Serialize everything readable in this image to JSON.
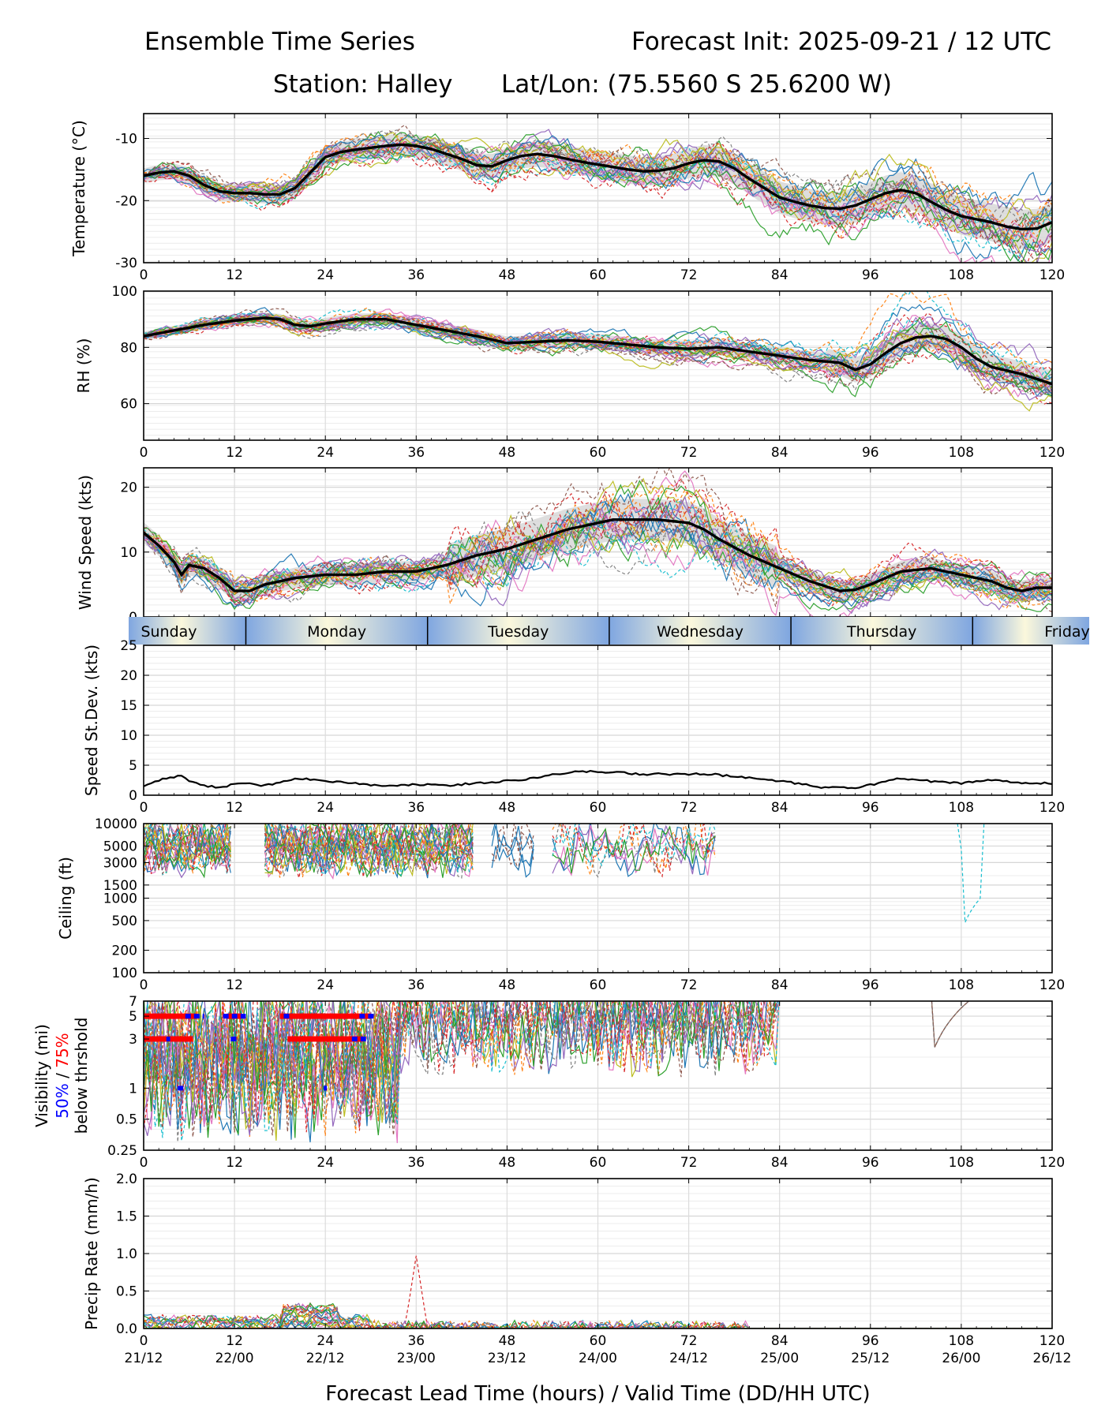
{
  "header": {
    "left_title": "Ensemble Time Series",
    "right_title": "Forecast Init: 2025-09-21 / 12 UTC",
    "station": "Station: Halley",
    "latlon": "Lat/Lon: (75.5560 S 25.6200 W)"
  },
  "colors": {
    "members": [
      "#1f77b4",
      "#ff7f0e",
      "#2ca02c",
      "#d62728",
      "#9467bd",
      "#8c564b",
      "#e377c2",
      "#7f7f7f",
      "#bcbd22",
      "#17becf"
    ],
    "mean": "#000000",
    "spread": "#d3d3d3",
    "threshold_50": "#0000ff",
    "threshold_75": "#ff0000",
    "day_blue": "#7fa6e0",
    "day_cream": "#fbf8dc"
  },
  "chart_data": [
    {
      "id": "temperature",
      "type": "line",
      "ylabel": "Temperature (°C)",
      "ylim": [
        -30,
        -6
      ],
      "yticks": [
        -30,
        -20,
        -10
      ],
      "xlim": [
        0,
        120
      ],
      "xticks": [
        0,
        12,
        24,
        36,
        48,
        60,
        72,
        84,
        96,
        108,
        120
      ],
      "ensemble_mean": {
        "x": [
          0,
          2,
          4,
          6,
          8,
          10,
          12,
          14,
          16,
          18,
          20,
          22,
          24,
          26,
          28,
          30,
          32,
          34,
          36,
          38,
          40,
          42,
          44,
          46,
          48,
          50,
          52,
          54,
          56,
          58,
          60,
          62,
          64,
          66,
          68,
          70,
          72,
          74,
          76,
          78,
          80,
          82,
          84,
          86,
          88,
          90,
          92,
          94,
          96,
          98,
          100,
          102,
          104,
          106,
          108,
          110,
          112,
          114,
          116,
          118,
          120
        ],
        "y": [
          -16,
          -15.5,
          -15.3,
          -16,
          -17.5,
          -18.5,
          -18.8,
          -18.8,
          -19,
          -19,
          -18,
          -15.5,
          -13,
          -12.2,
          -11.8,
          -11.5,
          -11.2,
          -11,
          -11.2,
          -11.7,
          -12.5,
          -13.3,
          -14.3,
          -14.5,
          -13.5,
          -12.8,
          -12.5,
          -12.8,
          -13.3,
          -13.8,
          -14.2,
          -14.6,
          -15,
          -15.3,
          -15.2,
          -14.8,
          -14,
          -13.5,
          -13.7,
          -14.8,
          -16.5,
          -18,
          -19.5,
          -20.2,
          -20.8,
          -21.2,
          -21.3,
          -20.8,
          -19.8,
          -18.8,
          -18.3,
          -18.8,
          -20.2,
          -21.5,
          -22.5,
          -23,
          -23.5,
          -24.2,
          -24.6,
          -24.5,
          -23.5
        ]
      }
    },
    {
      "id": "rh",
      "type": "line",
      "ylabel": "RH (%)",
      "ylim": [
        47,
        100
      ],
      "yticks": [
        60,
        80,
        100
      ],
      "xlim": [
        0,
        120
      ],
      "xticks": [
        0,
        12,
        24,
        36,
        48,
        60,
        72,
        84,
        96,
        108,
        120
      ],
      "ensemble_mean": {
        "x": [
          0,
          4,
          8,
          12,
          16,
          18,
          20,
          22,
          24,
          28,
          32,
          36,
          40,
          44,
          48,
          52,
          56,
          60,
          64,
          68,
          72,
          76,
          80,
          84,
          88,
          92,
          94,
          96,
          98,
          100,
          102,
          104,
          106,
          108,
          110,
          112,
          116,
          120
        ],
        "y": [
          84,
          86,
          88,
          89.5,
          90.5,
          90,
          88,
          87.5,
          88.5,
          90,
          90,
          88,
          86,
          84,
          81.5,
          82,
          82.5,
          82,
          81,
          80,
          79.5,
          80,
          78.5,
          77,
          75.5,
          74.5,
          72,
          74,
          78,
          81.5,
          83.5,
          84,
          83,
          80,
          76,
          73,
          70.5,
          67
        ]
      }
    },
    {
      "id": "wind_speed",
      "type": "line",
      "ylabel": "Wind Speed (kts)",
      "ylim": [
        0,
        23
      ],
      "yticks": [
        0,
        10,
        20
      ],
      "xlim": [
        0,
        120
      ],
      "xticks": [
        0,
        12,
        24,
        36,
        48,
        60,
        72,
        84,
        96,
        108,
        120
      ],
      "ensemble_mean": {
        "x": [
          0,
          2,
          4,
          5,
          6,
          8,
          10,
          12,
          14,
          16,
          20,
          24,
          28,
          32,
          36,
          40,
          44,
          48,
          52,
          56,
          60,
          62,
          64,
          68,
          72,
          74,
          76,
          80,
          84,
          88,
          92,
          94,
          96,
          100,
          104,
          108,
          112,
          114,
          116,
          118,
          120
        ],
        "y": [
          13,
          11,
          8.5,
          6.5,
          8,
          7.5,
          6,
          4,
          4,
          5,
          6,
          6.5,
          6.5,
          7,
          7,
          8,
          9.5,
          10.5,
          12,
          13.5,
          14.5,
          15,
          15,
          15,
          14.5,
          13.5,
          12,
          9.5,
          7.5,
          5.5,
          4,
          4.2,
          5,
          7,
          7.5,
          6.5,
          5.5,
          4.5,
          4,
          4.5,
          4.5
        ]
      }
    },
    {
      "id": "day_band",
      "type": "table",
      "days": [
        {
          "label": "Sunday",
          "start": 0,
          "end": 13.5
        },
        {
          "label": "Monday",
          "start": 13.5,
          "end": 37.5
        },
        {
          "label": "Tuesday",
          "start": 37.5,
          "end": 61.5
        },
        {
          "label": "Wednesday",
          "start": 61.5,
          "end": 85.5
        },
        {
          "label": "Thursday",
          "start": 85.5,
          "end": 109.5
        },
        {
          "label": "Friday",
          "start": 109.5,
          "end": 120
        }
      ]
    },
    {
      "id": "speed_stdev",
      "type": "line",
      "ylabel": "Speed St.Dev. (kts)",
      "ylim": [
        0,
        25
      ],
      "yticks": [
        0,
        5,
        10,
        15,
        20,
        25
      ],
      "xlim": [
        0,
        120
      ],
      "xticks": [
        0,
        12,
        24,
        36,
        48,
        60,
        72,
        84,
        96,
        108,
        120
      ],
      "series": [
        {
          "name": "std dev",
          "x": [
            0,
            2,
            4,
            5,
            6,
            8,
            10,
            12,
            14,
            16,
            18,
            20,
            24,
            28,
            32,
            36,
            40,
            44,
            48,
            50,
            54,
            58,
            62,
            66,
            70,
            74,
            78,
            82,
            86,
            90,
            94,
            98,
            100,
            104,
            108,
            112,
            116,
            120
          ],
          "y": [
            1.5,
            2.5,
            3,
            3.3,
            2.5,
            1.5,
            1.3,
            1.8,
            2,
            1.6,
            2.2,
            2.8,
            2.4,
            2,
            1.5,
            1.8,
            1.6,
            2,
            2.4,
            2.6,
            3.5,
            4,
            3.8,
            3.5,
            3.5,
            3.6,
            3.1,
            2.6,
            2,
            1.2,
            1.3,
            2.2,
            2.8,
            2.3,
            2,
            2.5,
            2.1,
            2
          ]
        }
      ]
    },
    {
      "id": "ceiling",
      "type": "line",
      "ylabel": "Ceiling (ft)",
      "scale": "log",
      "ylim": [
        100,
        10000
      ],
      "ytick_labels": [
        "100",
        "200",
        "500",
        "1000",
        "1500",
        "3000",
        "5000",
        "10000"
      ],
      "xlim": [
        0,
        120
      ],
      "xticks": [
        0,
        12,
        24,
        36,
        48,
        60,
        72,
        84,
        96,
        108,
        120
      ]
    },
    {
      "id": "visibility",
      "type": "line",
      "ylabel": "Visibility (mi)",
      "ylabel_sub": "50% / 75%",
      "ylabel_sub_50": "50%",
      "ylabel_sub_slash": " / ",
      "ylabel_sub_75": "75%",
      "ylabel_sub2": "below thrshold",
      "scale": "log",
      "ylim": [
        0.25,
        7
      ],
      "ytick_labels": [
        "0.25",
        "0.5",
        "1",
        "3",
        "5",
        "7"
      ],
      "xlim": [
        0,
        120
      ],
      "xticks": [
        0,
        12,
        24,
        36,
        48,
        60,
        72,
        84,
        96,
        108,
        120
      ],
      "threshold_75": [
        {
          "y": 5,
          "from": 0,
          "to": 7
        },
        {
          "y": 5,
          "from": 11,
          "to": 13
        },
        {
          "y": 5,
          "from": 18,
          "to": 30
        },
        {
          "y": 3,
          "from": 0,
          "to": 6.5
        },
        {
          "y": 3,
          "from": 19,
          "to": 29
        }
      ],
      "threshold_50": [
        {
          "y": 5,
          "from": 5.5,
          "to": 8
        },
        {
          "y": 5,
          "from": 10.5,
          "to": 13.5
        },
        {
          "y": 5,
          "from": 18.5,
          "to": 19.5
        },
        {
          "y": 5,
          "from": 28.5,
          "to": 30.5
        },
        {
          "y": 3,
          "from": 3,
          "to": 3.5
        },
        {
          "y": 3,
          "from": 11.5,
          "to": 12.5
        },
        {
          "y": 3,
          "from": 27.5,
          "to": 29.5
        },
        {
          "y": 1,
          "from": 4.5,
          "to": 5.5
        },
        {
          "y": 1,
          "from": 23.8,
          "to": 24.2
        }
      ]
    },
    {
      "id": "precip",
      "type": "line",
      "ylabel": "Precip Rate (mm/h)",
      "ylim": [
        0,
        2
      ],
      "yticks": [
        0,
        0.5,
        1,
        1.5,
        2
      ],
      "ytick_labels": [
        "0.0",
        "0.5",
        "1.0",
        "1.5",
        "2.0"
      ],
      "xlim": [
        0,
        120
      ],
      "xticks": [
        0,
        12,
        24,
        36,
        48,
        60,
        72,
        84,
        96,
        108,
        120
      ],
      "valid_time_labels": [
        "21/12",
        "22/00",
        "22/12",
        "23/00",
        "23/12",
        "24/00",
        "24/12",
        "25/00",
        "25/12",
        "26/00",
        "26/12"
      ],
      "xlabel": "Forecast Lead Time (hours) / Valid Time (DD/HH UTC)",
      "peak": {
        "x": 36,
        "y": 0.97
      }
    }
  ]
}
